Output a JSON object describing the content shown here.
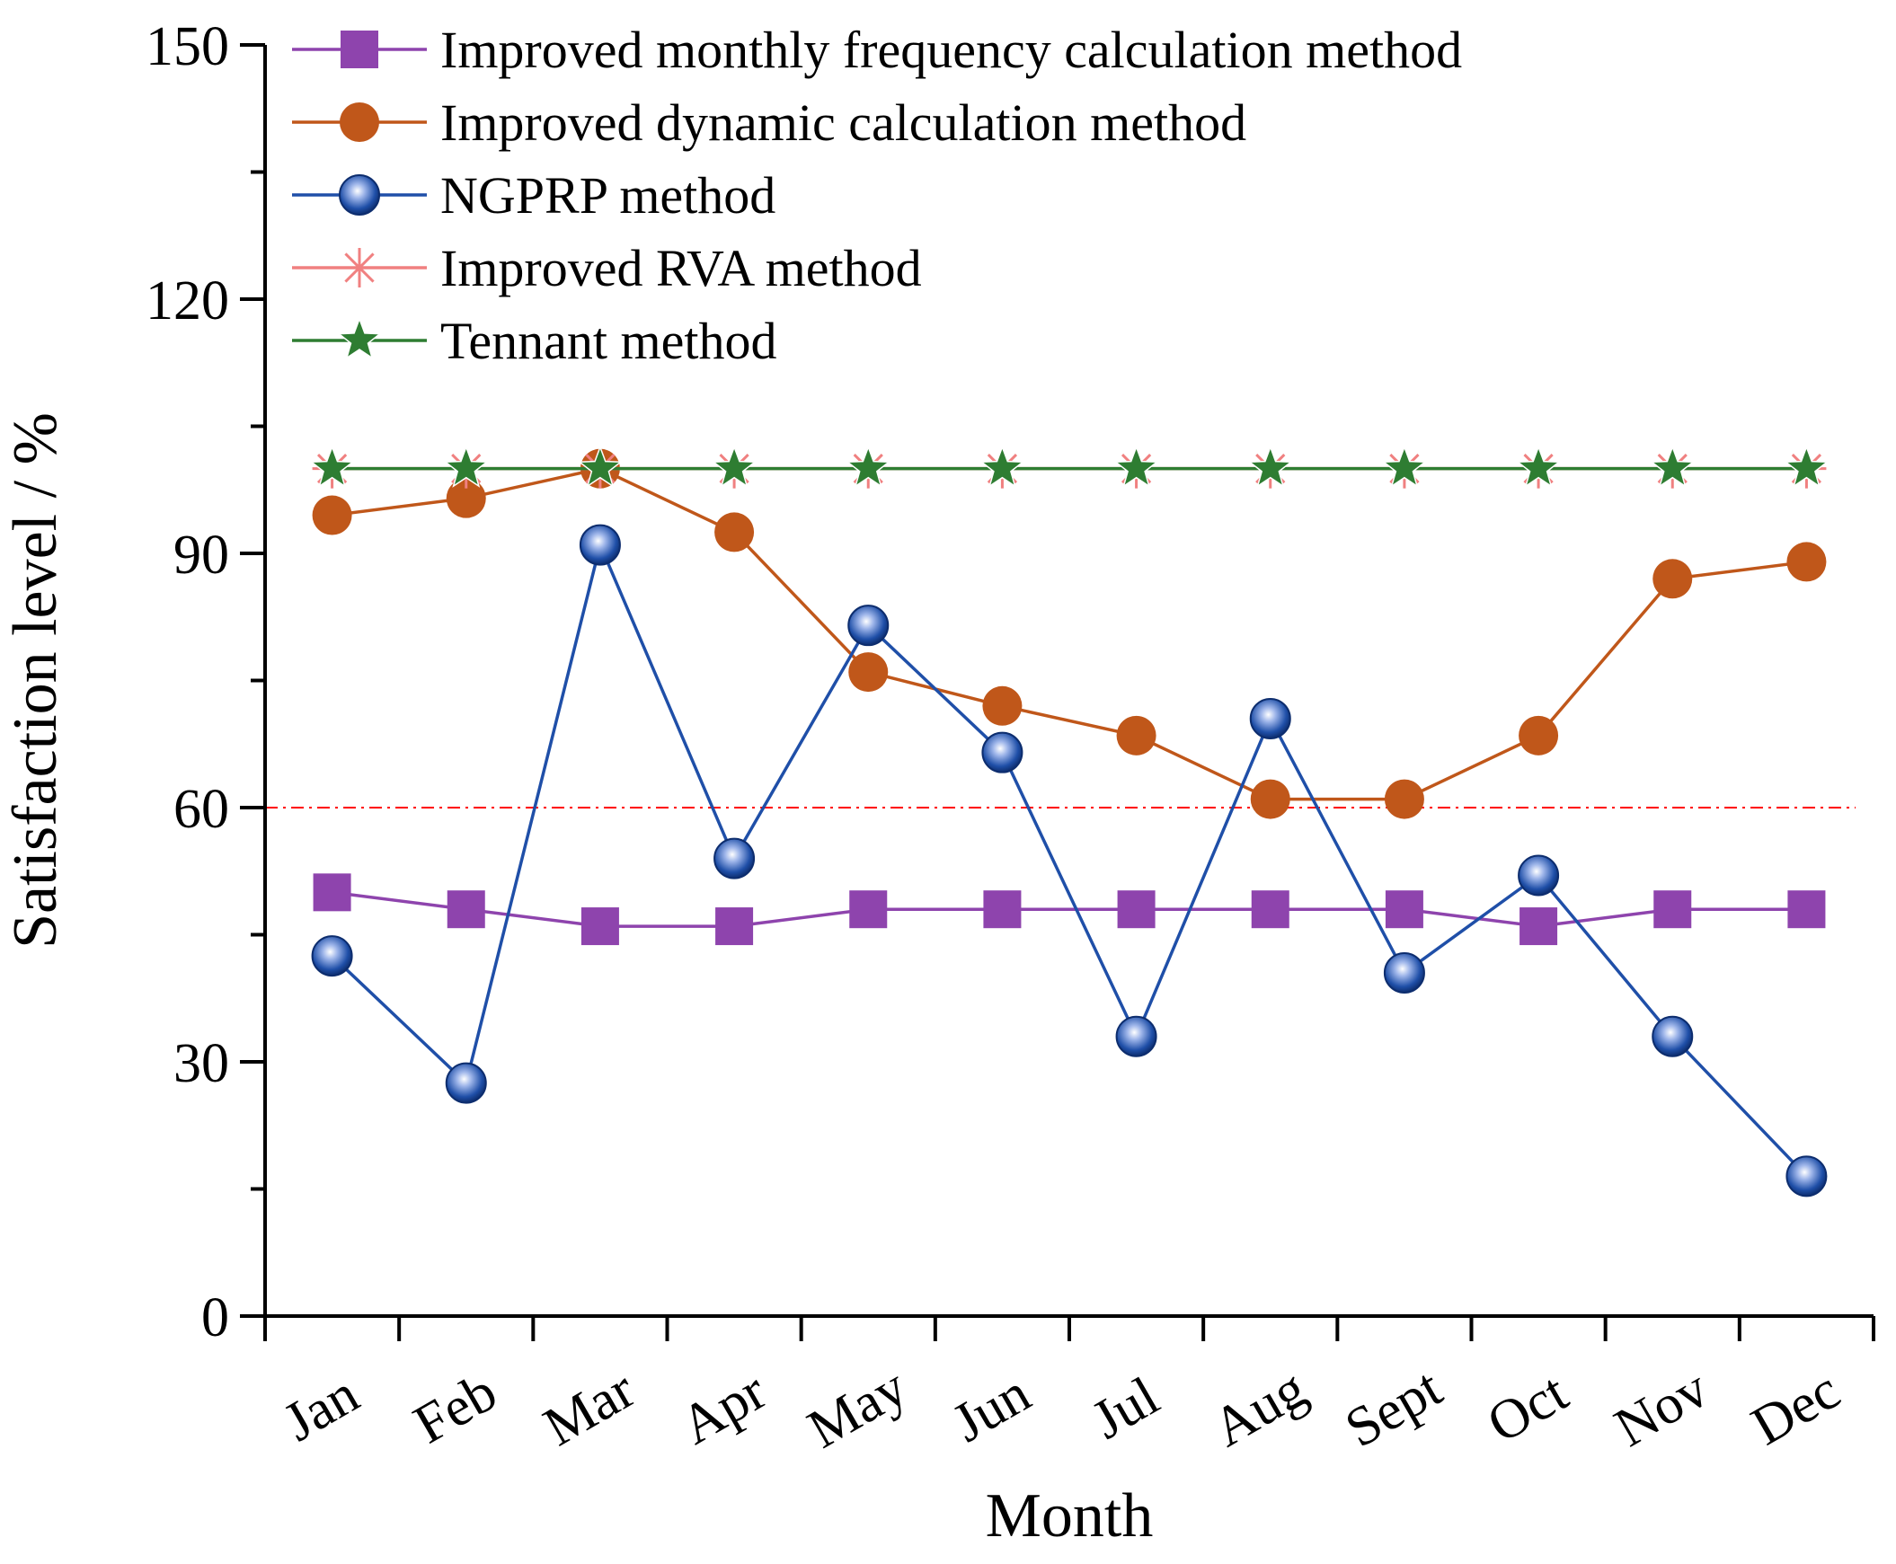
{
  "chart_data": {
    "type": "line",
    "title": "",
    "xlabel": "Month",
    "ylabel": "Satisfaction level / %",
    "categories": [
      "Jan",
      "Feb",
      "Mar",
      "Apr",
      "May",
      "Jun",
      "Jul",
      "Aug",
      "Sept",
      "Oct",
      "Nov",
      "Dec"
    ],
    "ylim": [
      0,
      150
    ],
    "yticks": [
      0,
      30,
      60,
      90,
      120,
      150
    ],
    "reference_line": {
      "value": 60,
      "color": "#ff0000",
      "style": "dash-dot"
    },
    "legend_position": "top-left",
    "series": [
      {
        "name": "Improved monthly frequency calculation method",
        "color": "#8e44ad",
        "marker": "square",
        "values": [
          50,
          48,
          46,
          46,
          48,
          48,
          48,
          48,
          48,
          46,
          48,
          48
        ]
      },
      {
        "name": "Improved dynamic calculation method",
        "color": "#c0571a",
        "marker": "circle",
        "values": [
          94.5,
          96.5,
          100,
          92.5,
          76,
          72,
          68.5,
          61,
          61,
          68.5,
          87,
          89
        ]
      },
      {
        "name": "NGPRP method",
        "color": "#1f4fa8",
        "marker": "sphere",
        "values": [
          42.5,
          27.5,
          91,
          54,
          81.5,
          66.5,
          33,
          70.5,
          40.5,
          52,
          33,
          16.5
        ]
      },
      {
        "name": "Improved RVA method",
        "color": "#f08080",
        "marker": "asterisk",
        "values": [
          100,
          100,
          100,
          100,
          100,
          100,
          100,
          100,
          100,
          100,
          100,
          100
        ]
      },
      {
        "name": "Tennant method",
        "color": "#2e7d32",
        "marker": "star",
        "values": [
          100,
          100,
          100,
          100,
          100,
          100,
          100,
          100,
          100,
          100,
          100,
          100
        ]
      }
    ]
  }
}
